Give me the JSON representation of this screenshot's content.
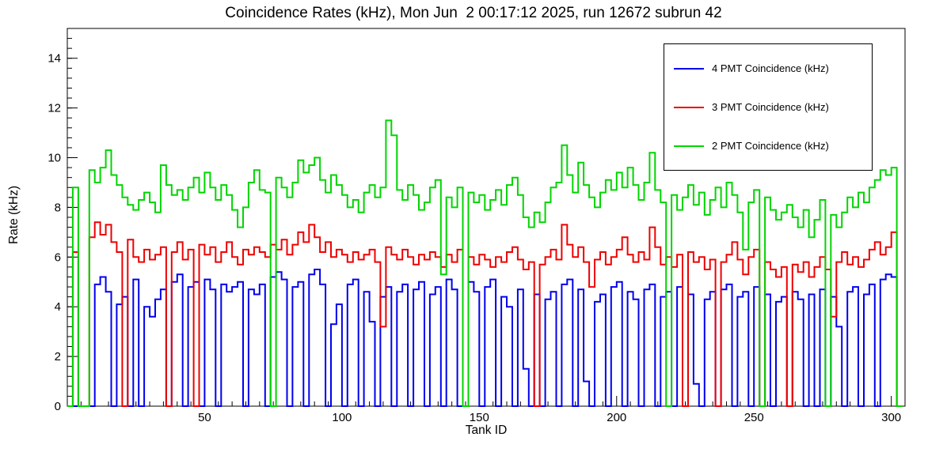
{
  "title": "Coincidence Rates (kHz), Mon Jun  2 00:17:12 2025, run 12672 subrun 42",
  "chart_data": {
    "type": "line",
    "subtype": "step-histogram",
    "title": "Coincidence Rates (kHz), Mon Jun  2 00:17:12 2025, run 12672 subrun 42",
    "xlabel": "Tank ID",
    "ylabel": "Rate (kHz)",
    "xlim": [
      0,
      305
    ],
    "ylim": [
      0,
      15.2
    ],
    "grid": false,
    "legend_position": "top-right",
    "x_bin_start": 0,
    "x_bin_width": 2,
    "x_major_ticks": [
      50,
      100,
      150,
      200,
      250,
      300
    ],
    "x_minor_step": 5,
    "y_major_ticks": [
      0,
      2,
      4,
      6,
      8,
      10,
      12,
      14
    ],
    "y_minor_step": 0.4,
    "frame_color": "#000000",
    "background_color": "#ffffff",
    "series": [
      {
        "id": "4pmt",
        "name": "4 PMT Coincidence (kHz)",
        "color": "#0000ee",
        "values": [
          0,
          0,
          0,
          0,
          0,
          4.9,
          5.2,
          4.6,
          0,
          4.1,
          4.4,
          0,
          5.1,
          0,
          4.0,
          3.6,
          4.3,
          4.7,
          0,
          5.0,
          5.3,
          0,
          4.8,
          5.0,
          0,
          5.1,
          4.7,
          0,
          4.9,
          4.6,
          4.8,
          5.0,
          0,
          4.7,
          4.5,
          4.9,
          0,
          5.2,
          5.4,
          5.1,
          0,
          4.8,
          5.0,
          0,
          5.3,
          5.5,
          4.9,
          0,
          3.3,
          4.1,
          0,
          4.9,
          5.1,
          0,
          4.6,
          3.4,
          0,
          4.4,
          4.8,
          0,
          4.6,
          4.9,
          0,
          4.7,
          5.0,
          0,
          4.5,
          4.8,
          0,
          5.1,
          4.7,
          0,
          0,
          5.0,
          4.6,
          0,
          4.8,
          5.1,
          0,
          4.4,
          4.0,
          0,
          4.7,
          1.5,
          0,
          4.5,
          0,
          4.3,
          4.6,
          0,
          4.9,
          5.1,
          0,
          4.7,
          1.0,
          0,
          4.2,
          4.5,
          0,
          4.8,
          5.0,
          0,
          4.6,
          4.3,
          0,
          4.7,
          4.9,
          0,
          4.4,
          4.6,
          0,
          4.8,
          0,
          4.5,
          0.9,
          0,
          4.3,
          4.6,
          0,
          4.7,
          4.9,
          0,
          4.4,
          4.6,
          0,
          4.8,
          0,
          4.5,
          0,
          4.2,
          4.4,
          0,
          4.6,
          4.3,
          0,
          4.5,
          0,
          4.7,
          0,
          4.4,
          3.2,
          0,
          4.6,
          4.8,
          0,
          4.5,
          4.9,
          0,
          5.1,
          5.3,
          5.2,
          0
        ]
      },
      {
        "id": "3pmt",
        "name": "3 PMT Coincidence (kHz)",
        "color": "#ee0000",
        "values": [
          0,
          6.2,
          0,
          0,
          6.8,
          7.4,
          6.9,
          7.3,
          6.6,
          6.2,
          0,
          6.7,
          6.0,
          5.8,
          6.3,
          5.9,
          6.1,
          6.4,
          0,
          6.2,
          6.6,
          5.9,
          6.3,
          0,
          6.5,
          6.1,
          6.4,
          5.8,
          6.2,
          6.6,
          6.0,
          5.7,
          6.3,
          6.1,
          6.4,
          6.2,
          6.0,
          6.5,
          6.3,
          6.7,
          6.1,
          6.5,
          7.0,
          6.6,
          7.3,
          6.8,
          6.2,
          6.6,
          6.0,
          6.3,
          6.1,
          5.8,
          6.2,
          5.9,
          6.1,
          6.3,
          5.8,
          3.2,
          6.4,
          6.1,
          5.9,
          6.3,
          6.0,
          5.7,
          6.1,
          5.9,
          6.2,
          6.0,
          5.6,
          6.1,
          5.8,
          6.3,
          0,
          6.0,
          5.7,
          6.1,
          5.9,
          5.6,
          6.0,
          5.8,
          6.2,
          6.4,
          5.9,
          5.5,
          5.8,
          0,
          5.7,
          6.0,
          6.3,
          5.9,
          7.3,
          6.5,
          6.0,
          6.4,
          5.8,
          4.8,
          5.9,
          6.2,
          5.7,
          6.0,
          6.3,
          6.8,
          6.1,
          5.8,
          6.2,
          5.9,
          7.2,
          6.4,
          5.7,
          6.0,
          5.6,
          6.1,
          0,
          6.2,
          5.8,
          6.0,
          5.5,
          5.9,
          0,
          5.8,
          6.1,
          6.6,
          5.9,
          5.3,
          6.0,
          6.3,
          0,
          5.8,
          5.5,
          5.2,
          5.6,
          0,
          5.7,
          5.4,
          5.8,
          5.2,
          5.6,
          6.0,
          5.5,
          3.6,
          5.8,
          6.2,
          5.7,
          6.0,
          5.6,
          5.9,
          6.3,
          6.6,
          6.1,
          6.4,
          7.0,
          0
        ]
      },
      {
        "id": "2pmt",
        "name": "2 PMT Coincidence (kHz)",
        "color": "#00d500",
        "values": [
          0,
          8.8,
          0,
          0,
          9.5,
          9.0,
          9.6,
          10.3,
          9.3,
          8.9,
          8.4,
          8.1,
          7.9,
          8.3,
          8.6,
          8.2,
          7.8,
          9.7,
          8.9,
          8.5,
          8.7,
          8.3,
          8.8,
          9.2,
          8.6,
          9.4,
          8.8,
          8.3,
          8.9,
          8.5,
          7.9,
          7.2,
          8.0,
          9.0,
          9.5,
          8.7,
          8.6,
          0,
          9.2,
          8.8,
          8.4,
          9.0,
          9.9,
          9.4,
          9.7,
          10.0,
          9.1,
          8.6,
          9.3,
          8.9,
          8.5,
          8.0,
          8.3,
          7.8,
          8.6,
          8.9,
          8.4,
          8.8,
          11.5,
          10.9,
          8.7,
          8.3,
          8.9,
          8.5,
          7.9,
          8.2,
          8.8,
          9.1,
          5.3,
          8.4,
          8.0,
          8.8,
          0,
          8.6,
          8.2,
          8.5,
          7.9,
          8.3,
          8.7,
          8.1,
          8.9,
          9.2,
          8.5,
          7.6,
          7.2,
          7.8,
          7.4,
          8.2,
          8.8,
          9.0,
          10.5,
          9.3,
          8.6,
          9.8,
          8.9,
          8.4,
          8.0,
          8.6,
          9.1,
          8.7,
          9.4,
          8.8,
          9.6,
          8.9,
          8.3,
          9.0,
          10.2,
          8.7,
          8.2,
          0,
          8.5,
          7.9,
          8.4,
          8.9,
          8.1,
          8.6,
          7.7,
          8.3,
          8.8,
          8.0,
          9.0,
          8.5,
          7.8,
          6.3,
          8.2,
          8.7,
          0,
          8.4,
          7.9,
          7.5,
          7.8,
          8.1,
          7.6,
          7.2,
          7.9,
          6.8,
          7.5,
          8.3,
          0,
          7.7,
          7.2,
          7.8,
          8.4,
          8.0,
          8.6,
          8.2,
          8.8,
          9.1,
          9.5,
          9.3,
          9.6,
          0
        ]
      }
    ]
  },
  "x_tick_labels": [
    "50",
    "100",
    "150",
    "200",
    "250",
    "300"
  ],
  "y_tick_labels": [
    "0",
    "2",
    "4",
    "6",
    "8",
    "10",
    "12",
    "14"
  ]
}
